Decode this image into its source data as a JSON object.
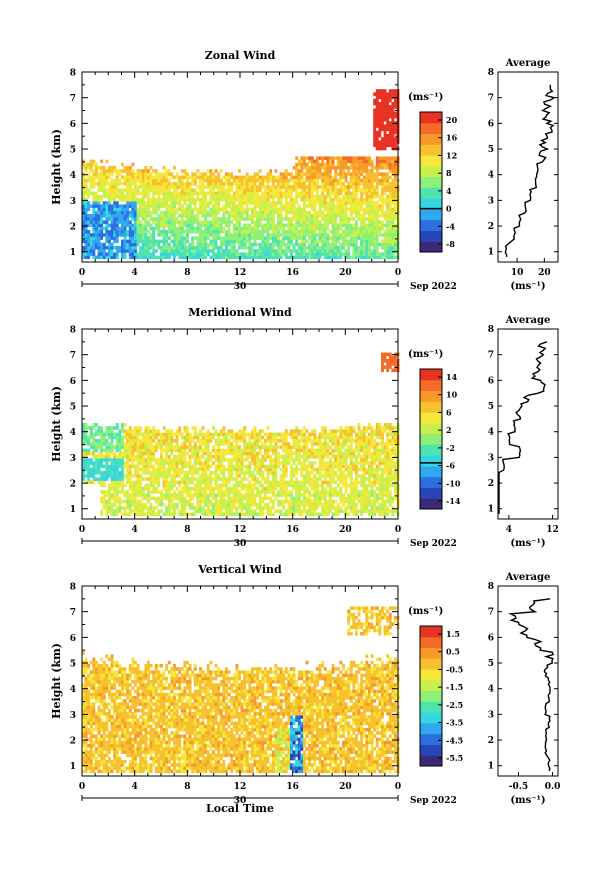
{
  "panels": [
    {
      "title": "Zonal Wind",
      "ylabel": "Height (km)",
      "avg_title": "Average",
      "unit": "(ms⁻¹)",
      "avg_unit": "(ms⁻¹)",
      "date_label": "Sep 2022",
      "day_label": "30",
      "time_ticks": [
        "0",
        "4",
        "8",
        "12",
        "16",
        "20",
        "0"
      ],
      "height_ticks": [
        "1",
        "2",
        "3",
        "4",
        "5",
        "6",
        "7",
        "8"
      ],
      "colorbar_ticks": [
        "20",
        "16",
        "12",
        "8",
        "4",
        "0",
        "-4",
        "-8"
      ],
      "avg_ticks": [
        "10",
        "20"
      ],
      "xlabel": ""
    },
    {
      "title": "Meridional Wind",
      "ylabel": "Height (km)",
      "avg_title": "Average",
      "unit": "(ms⁻¹)",
      "avg_unit": "(ms⁻¹)",
      "date_label": "Sep 2022",
      "day_label": "30",
      "time_ticks": [
        "0",
        "4",
        "8",
        "12",
        "16",
        "20",
        "0"
      ],
      "height_ticks": [
        "1",
        "2",
        "3",
        "4",
        "5",
        "6",
        "7",
        "8"
      ],
      "colorbar_ticks": [
        "14",
        "10",
        "6",
        "2",
        "-2",
        "-6",
        "-10",
        "-14"
      ],
      "avg_ticks": [
        "4",
        "12"
      ],
      "xlabel": ""
    },
    {
      "title": "Vertical Wind",
      "ylabel": "Height (km)",
      "avg_title": "Average",
      "unit": "(ms⁻¹)",
      "avg_unit": "(ms⁻¹)",
      "date_label": "Sep 2022",
      "day_label": "30",
      "time_ticks": [
        "0",
        "4",
        "8",
        "12",
        "16",
        "20",
        "0"
      ],
      "height_ticks": [
        "1",
        "2",
        "3",
        "4",
        "5",
        "6",
        "7",
        "8"
      ],
      "colorbar_ticks": [
        "1.5",
        "0.5",
        "-0.5",
        "-1.5",
        "-2.5",
        "-3.5",
        "-4.5",
        "-5.5"
      ],
      "avg_ticks": [
        "-0.5",
        "0.0"
      ],
      "xlabel": "Local Time"
    }
  ],
  "chart_data": [
    {
      "type": "heatmap",
      "title": "Zonal Wind",
      "xlabel": "",
      "ylabel": "Height (km)",
      "xlim": [
        0,
        24
      ],
      "ylim": [
        0.6,
        8
      ],
      "clim": [
        -10,
        22
      ],
      "colorbar_label": "(ms⁻¹)",
      "description_values": {
        "profile_height_km": [
          0.8,
          1.5,
          2.0,
          2.5,
          3.0,
          3.5,
          4.0,
          4.5,
          5.0,
          5.5,
          6.0,
          6.5,
          7.0,
          7.5
        ],
        "profile_speed": [
          6,
          9,
          11,
          13,
          15,
          17,
          17.5,
          19,
          20,
          22,
          21,
          21,
          22,
          23
        ]
      }
    },
    {
      "type": "heatmap",
      "title": "Meridional Wind",
      "xlabel": "",
      "ylabel": "Height (km)",
      "xlim": [
        0,
        24
      ],
      "ylim": [
        0.6,
        8
      ],
      "clim": [
        -16,
        16
      ],
      "colorbar_label": "(ms⁻¹)",
      "description_values": {
        "profile_height_km": [
          0.8,
          1.5,
          2.0,
          2.5,
          3.0,
          3.5,
          4.0,
          4.5,
          5.0,
          5.5,
          6.0,
          6.5,
          7.0,
          7.5
        ],
        "profile_speed": [
          2,
          1.5,
          1.5,
          3,
          6,
          4,
          5,
          6,
          7,
          10,
          9,
          9,
          10,
          11
        ]
      }
    },
    {
      "type": "heatmap",
      "title": "Vertical Wind",
      "xlabel": "Local Time",
      "ylabel": "Height (km)",
      "xlim": [
        0,
        24
      ],
      "ylim": [
        0.6,
        8
      ],
      "clim": [
        -6,
        2
      ],
      "colorbar_label": "(ms⁻¹)",
      "description_values": {
        "profile_height_km": [
          0.8,
          1.5,
          2.0,
          2.5,
          3.0,
          3.5,
          4.0,
          4.5,
          5.0,
          5.5,
          6.0,
          6.5,
          7.0,
          7.5
        ],
        "profile_speed": [
          -0.05,
          -0.1,
          -0.1,
          -0.05,
          -0.1,
          -0.05,
          -0.05,
          -0.1,
          -0.05,
          -0.2,
          -0.4,
          -0.55,
          -0.3,
          -0.1
        ]
      }
    }
  ]
}
